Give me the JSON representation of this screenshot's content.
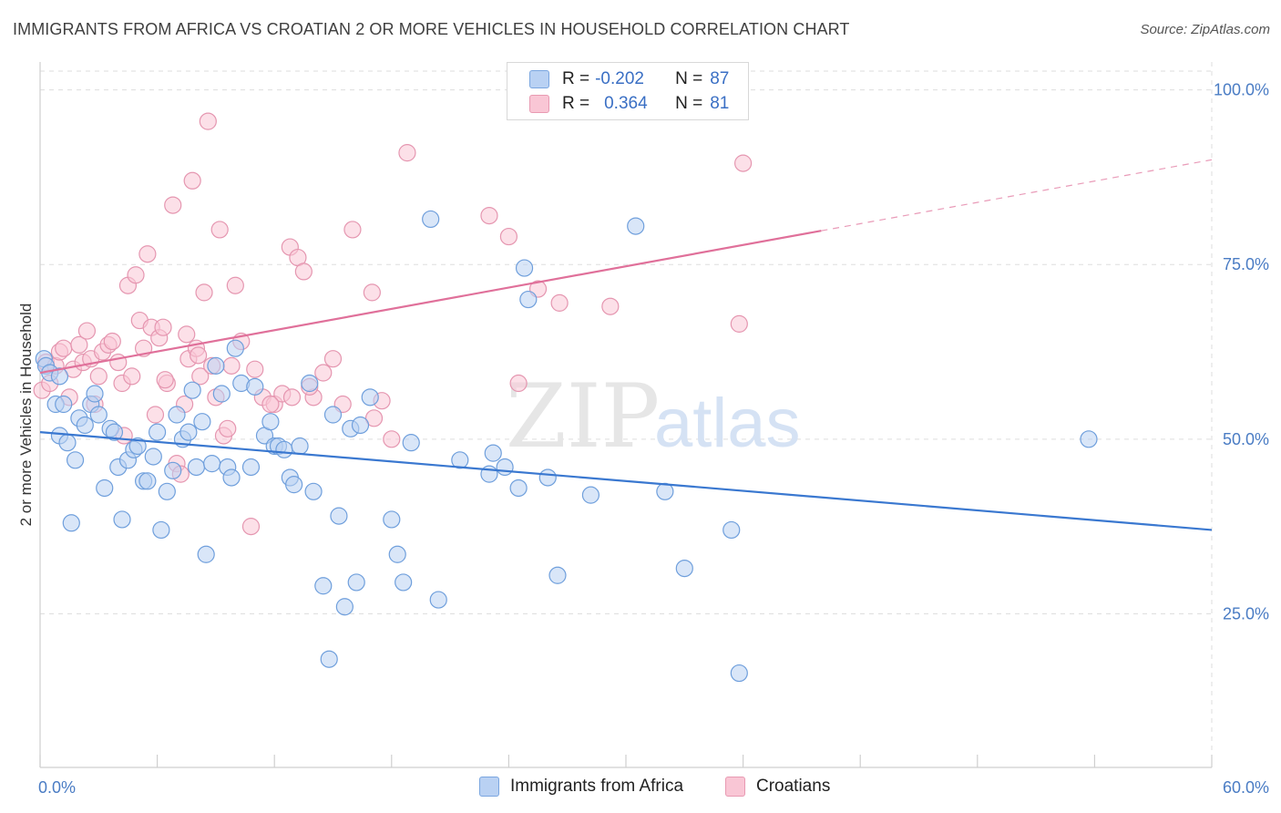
{
  "header": {
    "title": "IMMIGRANTS FROM AFRICA VS CROATIAN 2 OR MORE VEHICLES IN HOUSEHOLD CORRELATION CHART",
    "source": "Source: ZipAtlas.com"
  },
  "watermark": {
    "zip": "ZIP",
    "atlas": "atlas"
  },
  "legend": {
    "r_label": "R =",
    "n_label": "N =",
    "entries": [
      {
        "r": "-0.202",
        "n": "87",
        "fill": "#b9d1f3",
        "stroke": "#7aa6e0"
      },
      {
        "r": "0.364",
        "n": "81",
        "fill": "#f9c6d5",
        "stroke": "#e89ab2"
      }
    ]
  },
  "colors": {
    "blue_fill": "#b9d1f3",
    "blue_stroke": "#6f9fdc",
    "blue_line": "#3a78d0",
    "pink_fill": "#f9c6d5",
    "pink_stroke": "#e596b0",
    "pink_line": "#e0709a",
    "grid": "#dddddd",
    "tick_text": "#4a7cc4"
  },
  "chart_data": {
    "type": "scatter",
    "title": "IMMIGRANTS FROM AFRICA VS CROATIAN 2 OR MORE VEHICLES IN HOUSEHOLD CORRELATION CHART",
    "xlabel": "",
    "ylabel": "2 or more Vehicles in Household",
    "xlim": [
      0,
      60
    ],
    "ylim": [
      3,
      104
    ],
    "x_tick_labels": [
      "0.0%",
      "60.0%"
    ],
    "y_ticks": [
      25,
      50,
      75,
      100
    ],
    "y_tick_labels": [
      "25.0%",
      "50.0%",
      "75.0%",
      "100.0%"
    ],
    "grid": true,
    "legend_position": "bottom",
    "series": [
      {
        "name": "Immigrants from Africa",
        "color": "#b9d1f3",
        "trend": {
          "x0": 0,
          "y0": 51.0,
          "x1": 60,
          "y1": 37.0,
          "dashed_from": 60
        },
        "points": [
          [
            0.2,
            61.5
          ],
          [
            0.3,
            60.5
          ],
          [
            0.5,
            59.5
          ],
          [
            0.8,
            55.0
          ],
          [
            1.0,
            50.5
          ],
          [
            1.2,
            55.0
          ],
          [
            1.4,
            49.5
          ],
          [
            1.6,
            38.0
          ],
          [
            1.8,
            47.0
          ],
          [
            2.0,
            53.0
          ],
          [
            2.3,
            52.0
          ],
          [
            2.6,
            55.0
          ],
          [
            2.8,
            56.5
          ],
          [
            3.0,
            53.5
          ],
          [
            3.3,
            43.0
          ],
          [
            3.6,
            51.5
          ],
          [
            3.8,
            51.0
          ],
          [
            4.0,
            46.0
          ],
          [
            4.2,
            38.5
          ],
          [
            4.5,
            47.0
          ],
          [
            4.8,
            48.5
          ],
          [
            5.0,
            49.0
          ],
          [
            5.3,
            44.0
          ],
          [
            5.5,
            44.0
          ],
          [
            5.8,
            47.5
          ],
          [
            6.0,
            51.0
          ],
          [
            6.2,
            37.0
          ],
          [
            6.5,
            42.5
          ],
          [
            6.8,
            45.5
          ],
          [
            7.0,
            53.5
          ],
          [
            7.3,
            50.0
          ],
          [
            7.6,
            51.0
          ],
          [
            7.8,
            57.0
          ],
          [
            8.0,
            46.0
          ],
          [
            8.3,
            52.5
          ],
          [
            8.5,
            33.5
          ],
          [
            8.8,
            46.5
          ],
          [
            9.0,
            60.5
          ],
          [
            9.3,
            56.5
          ],
          [
            9.6,
            46.0
          ],
          [
            9.8,
            44.5
          ],
          [
            10.0,
            63.0
          ],
          [
            10.3,
            58.0
          ],
          [
            10.8,
            46.0
          ],
          [
            11.0,
            57.5
          ],
          [
            11.5,
            50.5
          ],
          [
            11.8,
            52.5
          ],
          [
            12.0,
            49.0
          ],
          [
            12.2,
            49.0
          ],
          [
            12.5,
            48.5
          ],
          [
            12.8,
            44.5
          ],
          [
            13.0,
            43.5
          ],
          [
            13.3,
            49.0
          ],
          [
            13.8,
            58.0
          ],
          [
            14.0,
            42.5
          ],
          [
            14.5,
            29.0
          ],
          [
            14.8,
            18.5
          ],
          [
            15.0,
            53.5
          ],
          [
            15.3,
            39.0
          ],
          [
            15.6,
            26.0
          ],
          [
            15.9,
            51.5
          ],
          [
            16.2,
            29.5
          ],
          [
            16.4,
            52.0
          ],
          [
            16.9,
            56.0
          ],
          [
            18.0,
            38.5
          ],
          [
            18.3,
            33.5
          ],
          [
            18.6,
            29.5
          ],
          [
            19.0,
            49.5
          ],
          [
            20.0,
            81.5
          ],
          [
            20.4,
            27.0
          ],
          [
            21.5,
            47.0
          ],
          [
            23.0,
            45.0
          ],
          [
            23.2,
            48.0
          ],
          [
            23.8,
            46.0
          ],
          [
            24.5,
            43.0
          ],
          [
            24.8,
            74.5
          ],
          [
            25.0,
            70.0
          ],
          [
            26.0,
            44.5
          ],
          [
            26.5,
            30.5
          ],
          [
            28.2,
            42.0
          ],
          [
            30.5,
            80.5
          ],
          [
            32.0,
            42.5
          ],
          [
            33.0,
            31.5
          ],
          [
            35.4,
            37.0
          ],
          [
            35.8,
            16.5
          ],
          [
            53.7,
            50.0
          ],
          [
            1.0,
            59.0
          ]
        ]
      },
      {
        "name": "Croatians",
        "color": "#f9c6d5",
        "trend": {
          "x0": 0,
          "y0": 59.5,
          "x1": 60,
          "y1": 90.0,
          "dashed_from": 40
        },
        "points": [
          [
            0.1,
            57.0
          ],
          [
            0.3,
            61.0
          ],
          [
            0.5,
            58.0
          ],
          [
            0.8,
            60.5
          ],
          [
            1.0,
            62.5
          ],
          [
            1.2,
            63.0
          ],
          [
            1.5,
            56.0
          ],
          [
            1.7,
            60.0
          ],
          [
            2.0,
            63.5
          ],
          [
            2.2,
            61.0
          ],
          [
            2.4,
            65.5
          ],
          [
            2.6,
            61.5
          ],
          [
            2.8,
            55.0
          ],
          [
            3.0,
            59.0
          ],
          [
            3.2,
            62.5
          ],
          [
            3.5,
            63.5
          ],
          [
            3.7,
            64.0
          ],
          [
            4.0,
            61.0
          ],
          [
            4.2,
            58.0
          ],
          [
            4.5,
            72.0
          ],
          [
            4.7,
            59.0
          ],
          [
            4.9,
            73.5
          ],
          [
            5.1,
            67.0
          ],
          [
            5.3,
            63.0
          ],
          [
            5.5,
            76.5
          ],
          [
            5.7,
            66.0
          ],
          [
            5.9,
            53.5
          ],
          [
            6.1,
            64.5
          ],
          [
            6.3,
            66.0
          ],
          [
            6.5,
            58.0
          ],
          [
            6.8,
            83.5
          ],
          [
            7.0,
            46.5
          ],
          [
            7.2,
            45.0
          ],
          [
            7.4,
            55.0
          ],
          [
            7.6,
            61.5
          ],
          [
            7.8,
            87.0
          ],
          [
            8.0,
            63.0
          ],
          [
            8.2,
            59.0
          ],
          [
            8.4,
            71.0
          ],
          [
            8.6,
            95.5
          ],
          [
            8.8,
            60.5
          ],
          [
            9.0,
            56.0
          ],
          [
            9.2,
            80.0
          ],
          [
            9.4,
            50.5
          ],
          [
            9.8,
            60.5
          ],
          [
            10.0,
            72.0
          ],
          [
            10.3,
            64.0
          ],
          [
            10.8,
            37.5
          ],
          [
            11.0,
            60.0
          ],
          [
            11.4,
            56.0
          ],
          [
            12.0,
            55.0
          ],
          [
            12.4,
            56.5
          ],
          [
            12.8,
            77.5
          ],
          [
            13.2,
            76.0
          ],
          [
            13.5,
            74.0
          ],
          [
            14.0,
            56.0
          ],
          [
            14.5,
            59.5
          ],
          [
            15.0,
            61.5
          ],
          [
            15.5,
            55.0
          ],
          [
            16.0,
            80.0
          ],
          [
            17.0,
            71.0
          ],
          [
            17.5,
            55.5
          ],
          [
            18.0,
            50.0
          ],
          [
            18.8,
            91.0
          ],
          [
            23.0,
            82.0
          ],
          [
            24.0,
            79.0
          ],
          [
            24.5,
            58.0
          ],
          [
            25.5,
            71.5
          ],
          [
            26.6,
            69.5
          ],
          [
            29.2,
            69.0
          ],
          [
            35.8,
            66.5
          ],
          [
            36.0,
            89.5
          ],
          [
            6.4,
            58.5
          ],
          [
            7.5,
            65.0
          ],
          [
            8.1,
            62.0
          ],
          [
            9.6,
            51.5
          ],
          [
            11.8,
            55.0
          ],
          [
            12.9,
            56.0
          ],
          [
            13.8,
            57.5
          ],
          [
            17.1,
            53.0
          ],
          [
            4.3,
            50.5
          ]
        ]
      }
    ]
  },
  "bottom_legend": {
    "items": [
      {
        "label": "Immigrants from Africa"
      },
      {
        "label": "Croatians"
      }
    ]
  }
}
